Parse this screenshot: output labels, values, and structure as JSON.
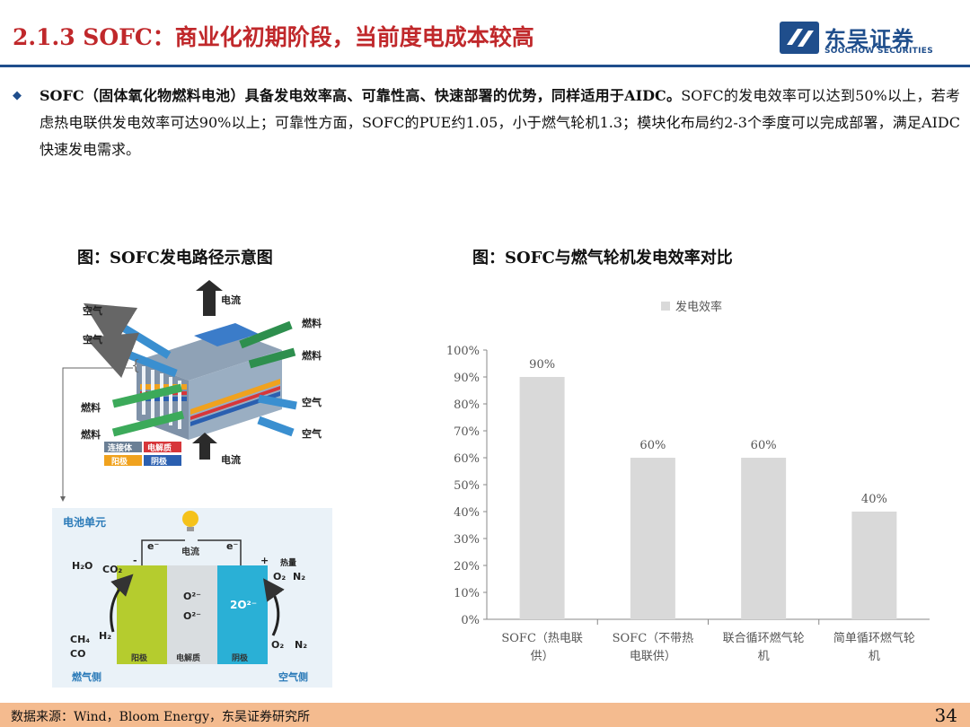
{
  "header": {
    "title": "2.1.3 SOFC：商业化初期阶段，当前度电成本较高",
    "logo_cn": "东吴证券",
    "logo_en": "SOOCHOW SECURITIES"
  },
  "intro": {
    "bold_text": "SOFC（固体氧化物燃料电池）具备发电效率高、可靠性高、快速部署的优势，同样适用于AIDC。",
    "normal_text": "SOFC的发电效率可以达到50%以上，若考虑热电联供发电效率可达90%以上；可靠性方面，SOFC的PUE约1.05，小于燃气轮机1.3；模块化布局约2-3个季度可以完成部署，满足AIDC快速发电需求。"
  },
  "figure_left": {
    "title": "图：SOFC发电路径示意图",
    "labels": {
      "top_current": "电流",
      "air_1": "空气",
      "air_2": "空气",
      "fuel_r1": "燃料",
      "fuel_r2": "燃料",
      "fuel_l1": "燃料",
      "fuel_l2": "燃料",
      "air_r1": "空气",
      "air_r2": "空气",
      "bottom_current": "电流",
      "legend_interconnect": "连接体",
      "legend_electrolyte": "电解质",
      "legend_anode": "阳极",
      "legend_cathode": "阴极",
      "cell_title": "电池单元",
      "cell_current": "电流",
      "electron_left": "e⁻",
      "electron_right": "e⁻",
      "minus_sign": "-",
      "plus_sign": "+",
      "heat": "热量",
      "h2o": "H₂O",
      "co2": "CO₂",
      "ch4": "CH₄",
      "h2": "H₂",
      "co": "CO",
      "o2_right_top": "O₂",
      "n2_right_top": "N₂",
      "o2_right_bottom": "O₂",
      "n2_right_bottom": "N₂",
      "o2_ion_1": "O²⁻",
      "o2_ion_2": "O²⁻",
      "o2_ion_3": "2O²⁻",
      "anode": "阳极",
      "electrolyte": "电解质",
      "cathode": "阴极",
      "fuel_side": "燃气侧",
      "air_side": "空气侧"
    }
  },
  "figure_right": {
    "title": "图：SOFC与燃气轮机发电效率对比"
  },
  "chart_data": {
    "type": "bar",
    "categories": [
      "SOFC（热电联供）",
      "SOFC（不带热电联供）",
      "联合循环燃气轮机",
      "简单循环燃气轮机"
    ],
    "category_lines": [
      [
        "SOFC（热电联",
        "供）"
      ],
      [
        "SOFC（不带热",
        "电联供）"
      ],
      [
        "联合循环燃气轮",
        "机"
      ],
      [
        "简单循环燃气轮",
        "机"
      ]
    ],
    "series": [
      {
        "name": "发电效率",
        "values": [
          90,
          60,
          60,
          40
        ],
        "labels": [
          "90%",
          "60%",
          "60%",
          "40%"
        ],
        "color": "#d9d9d9"
      }
    ],
    "yticks": [
      "0%",
      "10%",
      "20%",
      "30%",
      "40%",
      "50%",
      "60%",
      "70%",
      "80%",
      "90%",
      "100%"
    ],
    "ylim": [
      0,
      100
    ],
    "legend": "top-center",
    "grid": false
  },
  "footer": {
    "source": "数据来源：Wind，Bloom Energy，东吴证券研究所",
    "page": "34"
  },
  "colors": {
    "title_red": "#c0282b",
    "brand_blue": "#1f4e8c",
    "footer_bg": "#f4bb8f",
    "bar": "#d9d9d9",
    "anode_green": "#b5cc2e",
    "cathode_cyan": "#2ab0d6",
    "cell_bg": "#eaf2f8"
  }
}
